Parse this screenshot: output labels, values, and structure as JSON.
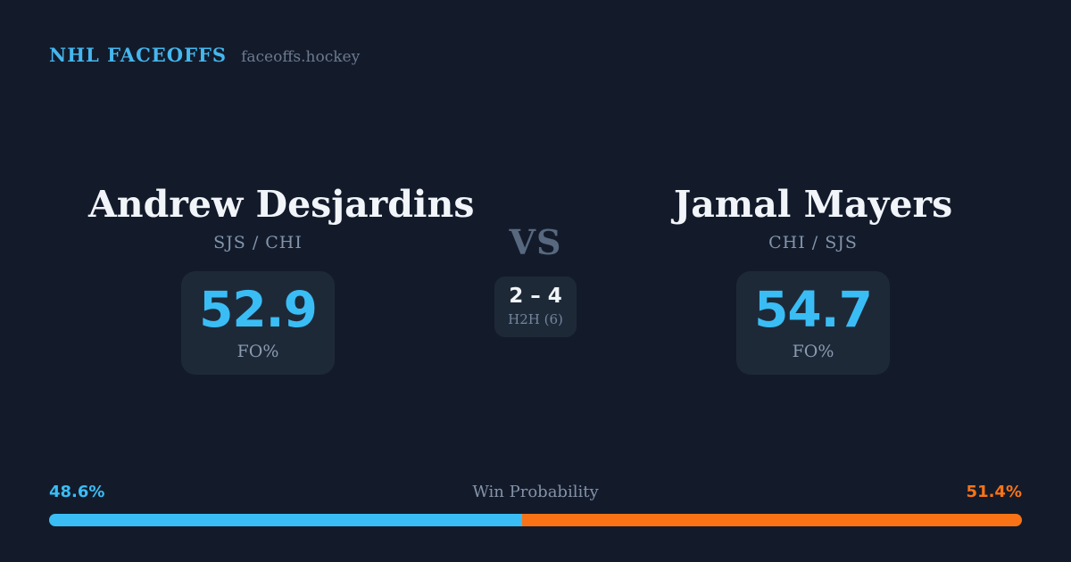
{
  "header": {
    "brand": "NHL FACEOFFS",
    "site": "faceoffs.hockey"
  },
  "matchup": {
    "vs_label": "VS",
    "h2h": {
      "score": "2 – 4",
      "label": "H2H (6)"
    },
    "players": [
      {
        "name": "Andrew Desjardins",
        "teams": "SJS / CHI",
        "fo_pct": "52.9",
        "fo_label": "FO%"
      },
      {
        "name": "Jamal Mayers",
        "teams": "CHI / SJS",
        "fo_pct": "54.7",
        "fo_label": "FO%"
      }
    ]
  },
  "win_probability": {
    "label": "Win Probability",
    "left_pct_text": "48.6%",
    "right_pct_text": "51.4%",
    "left_value": 48.6,
    "right_value": 51.4,
    "left_color": "#3abdf5",
    "right_color": "#f97316"
  },
  "colors": {
    "background": "#131b2b",
    "card": "#1e2938",
    "accent_blue": "#3abdf5",
    "accent_orange": "#f97316",
    "text_primary": "#f1f5f9",
    "text_muted": "#8295ac",
    "brand_blue": "#45b7ee"
  }
}
